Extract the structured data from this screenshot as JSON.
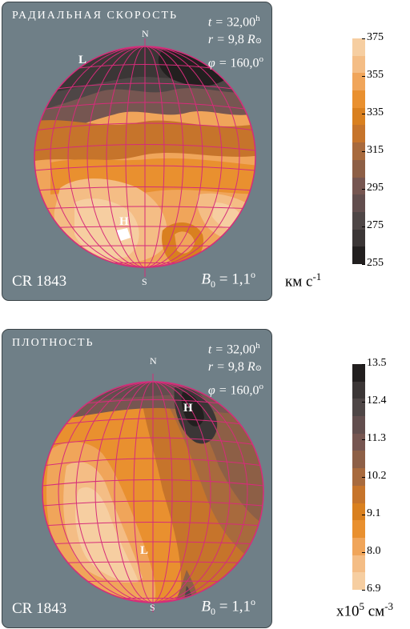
{
  "chart_data": [
    {
      "type": "heatmap",
      "title": "РАДИАЛЬНАЯ СКОРОСТЬ",
      "params": {
        "t": "32,00",
        "t_unit": "h",
        "r": "9,8",
        "r_unit": "R",
        "phi": "160,0",
        "phi_unit": "o"
      },
      "pole_labels": {
        "north": "N",
        "south": "S"
      },
      "extrema": [
        {
          "label": "L",
          "kind": "minimum"
        },
        {
          "label": "H",
          "kind": "maximum"
        }
      ],
      "footer_left": "CR 1843",
      "footer_right_value": "= 1,1",
      "footer_right_sup": "o",
      "colorbar": {
        "ticks": [
          "375",
          "355",
          "335",
          "315",
          "295",
          "275",
          "255"
        ],
        "range": [
          255,
          375
        ],
        "unit": "км с",
        "unit_exp": "-1",
        "colors": [
          "#f6cea1",
          "#f4bd85",
          "#f0a55a",
          "#e9902f",
          "#d9801f",
          "#c6742b",
          "#a86a3d",
          "#8d5f46",
          "#765651",
          "#624e4e",
          "#4e4646",
          "#3b3636",
          "#221f1f"
        ]
      }
    },
    {
      "type": "heatmap",
      "title": "ПЛОТНОСТЬ",
      "params": {
        "t": "32,00",
        "t_unit": "h",
        "r": "9,8",
        "r_unit": "R",
        "phi": "160,0",
        "phi_unit": "o"
      },
      "pole_labels": {
        "north": "N",
        "south": "S"
      },
      "extrema": [
        {
          "label": "H",
          "kind": "maximum"
        },
        {
          "label": "L",
          "kind": "minimum"
        }
      ],
      "footer_left": "CR 1843",
      "footer_right_value": "= 1,1",
      "footer_right_sup": "o",
      "colorbar": {
        "ticks": [
          "13.5",
          "12.4",
          "11.3",
          "10.2",
          "9.1",
          "8.0",
          "6.9"
        ],
        "range": [
          6.9,
          13.5
        ],
        "unit": "x10",
        "unit_exp1": "5",
        "unit_mid": " см",
        "unit_exp2": "-3",
        "colors": [
          "#221f1f",
          "#3b3636",
          "#4e4646",
          "#624e4e",
          "#765651",
          "#8d5f46",
          "#a86a3d",
          "#c6742b",
          "#d9801f",
          "#e9902f",
          "#f0a55a",
          "#f4bd85",
          "#f6cea1"
        ]
      }
    }
  ]
}
